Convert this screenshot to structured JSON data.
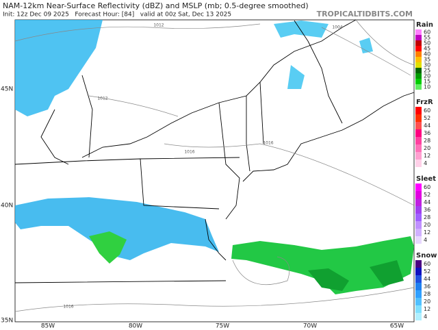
{
  "header": {
    "title": "NAM-12km Near-Surface Reflectivity (dBZ) and MSLP (mb; 0.5-degree smoothed)",
    "subtitle": "Init: 12z Dec 09 2025   Forecast Hour: [84]   valid at 00z Sat, Dec 13 2025",
    "site": "TROPICALTIDBITS.COM"
  },
  "map": {
    "latitude_labels": [
      "45N",
      "40N",
      "35N"
    ],
    "longitude_labels": [
      "85W",
      "80W",
      "75W",
      "70W",
      "65W"
    ],
    "isobar_labels": [
      "1012",
      "1004",
      "1012",
      "1016",
      "1016",
      "1016"
    ]
  },
  "legends": [
    {
      "title": "Rain",
      "labels": [
        "60",
        "55",
        "50",
        "45",
        "40",
        "35",
        "30",
        "25",
        "20",
        "15",
        "10"
      ],
      "colors": [
        "#ff80ff",
        "#c000c0",
        "#c00000",
        "#ff0000",
        "#ff8000",
        "#ffc000",
        "#e0e000",
        "#006400",
        "#009a00",
        "#00cc00",
        "#60ee60"
      ]
    },
    {
      "title": "FrzR",
      "labels": [
        "60",
        "52",
        "44",
        "36",
        "28",
        "20",
        "12",
        "4"
      ],
      "colors": [
        "#ff0000",
        "#ff3000",
        "#ff5050",
        "#ff0080",
        "#ff40a0",
        "#ff70b8",
        "#ffa0d0",
        "#ffd0e8"
      ]
    },
    {
      "title": "Sleet",
      "labels": [
        "60",
        "52",
        "44",
        "36",
        "28",
        "20",
        "12",
        "4"
      ],
      "colors": [
        "#ff00ff",
        "#e000e0",
        "#c020e0",
        "#a040f0",
        "#a060ff",
        "#c090ff",
        "#d0b0ff",
        "#e8d8ff"
      ]
    },
    {
      "title": "Snow",
      "labels": [
        "60",
        "52",
        "44",
        "36",
        "28",
        "20",
        "12",
        "4"
      ],
      "colors": [
        "#4b0082",
        "#1010c0",
        "#2050e0",
        "#2080f0",
        "#30a0ff",
        "#50c0ff",
        "#80e0ff",
        "#b0f0ff"
      ]
    }
  ]
}
